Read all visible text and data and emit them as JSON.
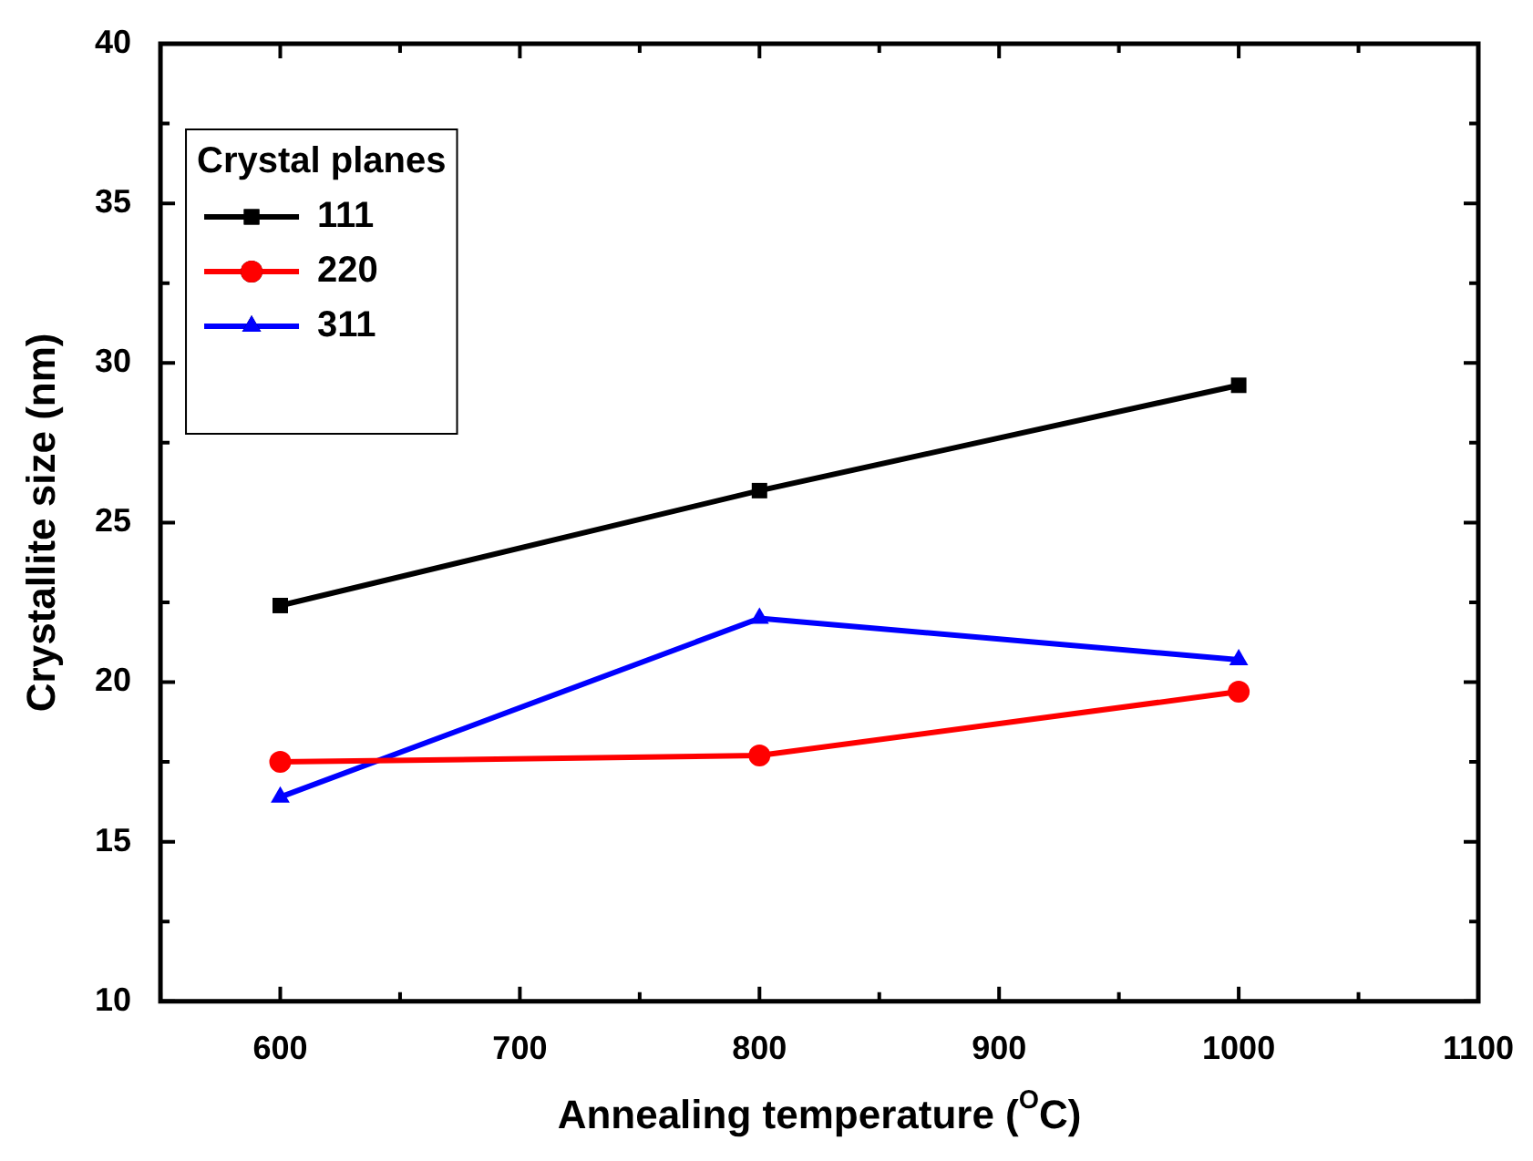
{
  "chart_data": {
    "type": "line",
    "xlabel": "Annealing temperature ($^{O}$C)",
    "ylabel": "Crystallite size (nm)",
    "legend_title": "Crystal planes",
    "legend": "top left",
    "x": [
      600,
      800,
      1000
    ],
    "series": [
      {
        "name": "111",
        "color": "#000000",
        "marker": "square",
        "values": [
          22.4,
          26.0,
          29.3
        ]
      },
      {
        "name": "220",
        "color": "#ff0000",
        "marker": "circle",
        "values": [
          17.5,
          17.7,
          19.7
        ]
      },
      {
        "name": "311",
        "color": "#0000ff",
        "marker": "triangle",
        "values": [
          16.4,
          22.0,
          20.7
        ]
      }
    ],
    "xlim": [
      550,
      1100
    ],
    "xticks": [
      600,
      700,
      800,
      900,
      1000,
      1100
    ],
    "ylim": [
      10,
      40
    ],
    "yticks": [
      10,
      15,
      20,
      25,
      30,
      35,
      40
    ],
    "line_style": "solid"
  }
}
